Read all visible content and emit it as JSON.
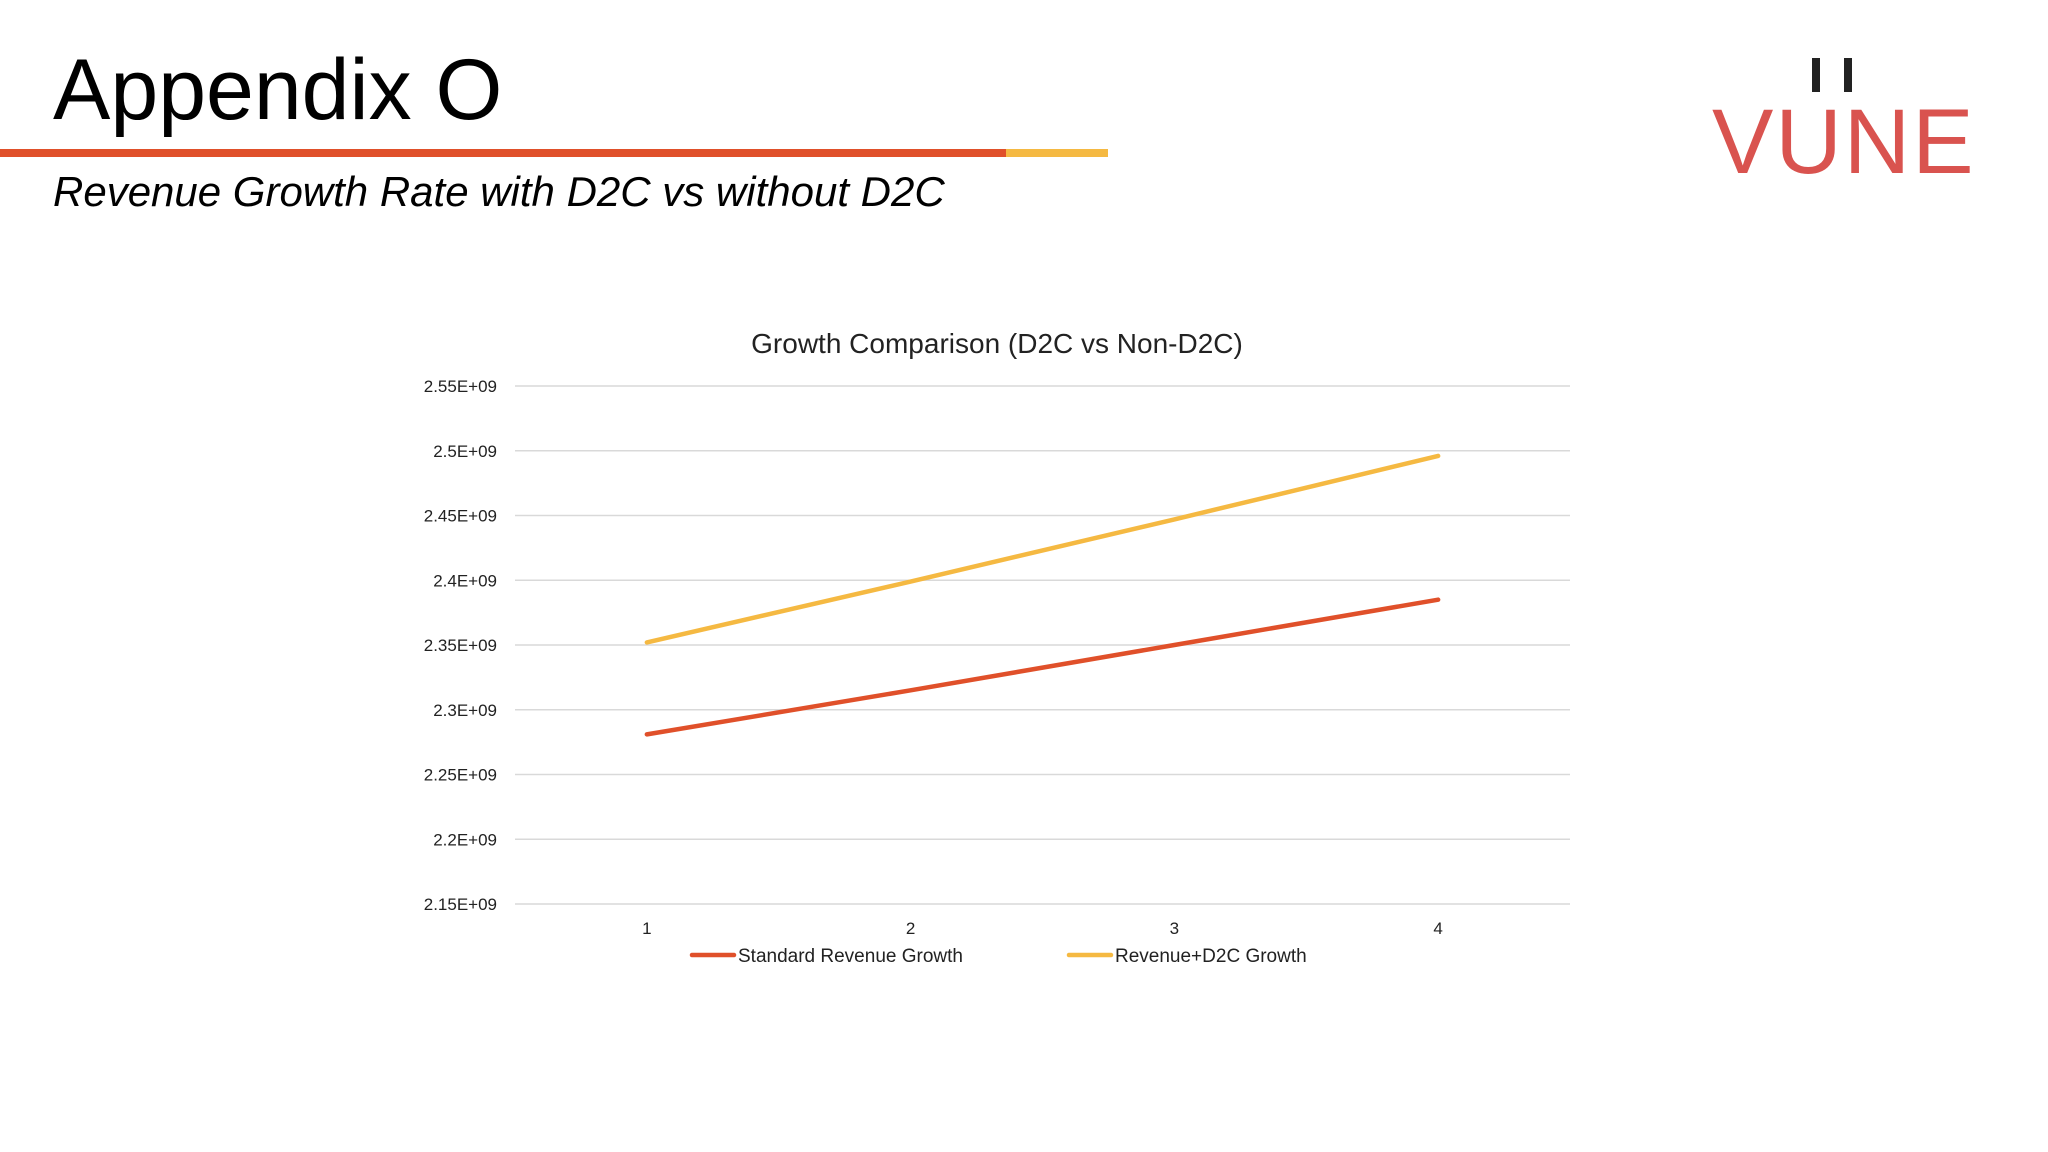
{
  "slide": {
    "title": "Appendix O",
    "subtitle": "Revenue Growth Rate with D2C vs without D2C",
    "accent_color": "#e0502a",
    "accent_color_secondary": "#f5b942"
  },
  "logo": {
    "text": "VUNE",
    "color": "#d9534f"
  },
  "chart_data": {
    "type": "line",
    "title": "Growth Comparison (D2C vs Non-D2C)",
    "xlabel": "",
    "ylabel": "",
    "x": [
      1,
      2,
      3,
      4
    ],
    "x_tick_labels": [
      "1",
      "2",
      "3",
      "4"
    ],
    "ylim": [
      2150000000,
      2550000000
    ],
    "y_ticks": [
      2150000000,
      2200000000,
      2250000000,
      2300000000,
      2350000000,
      2400000000,
      2450000000,
      2500000000,
      2550000000
    ],
    "y_tick_labels": [
      "2.15E+09",
      "2.2E+09",
      "2.25E+09",
      "2.3E+09",
      "2.35E+09",
      "2.4E+09",
      "2.45E+09",
      "2.5E+09",
      "2.55E+09"
    ],
    "grid": true,
    "legend_position": "bottom",
    "series": [
      {
        "name": "Standard Revenue Growth",
        "color": "#e0502a",
        "values": [
          2281000000,
          2315000000,
          2350000000,
          2385000000
        ]
      },
      {
        "name": "Revenue+D2C Growth",
        "color": "#f5b942",
        "values": [
          2352000000,
          2399000000,
          2447000000,
          2496000000
        ]
      }
    ]
  }
}
